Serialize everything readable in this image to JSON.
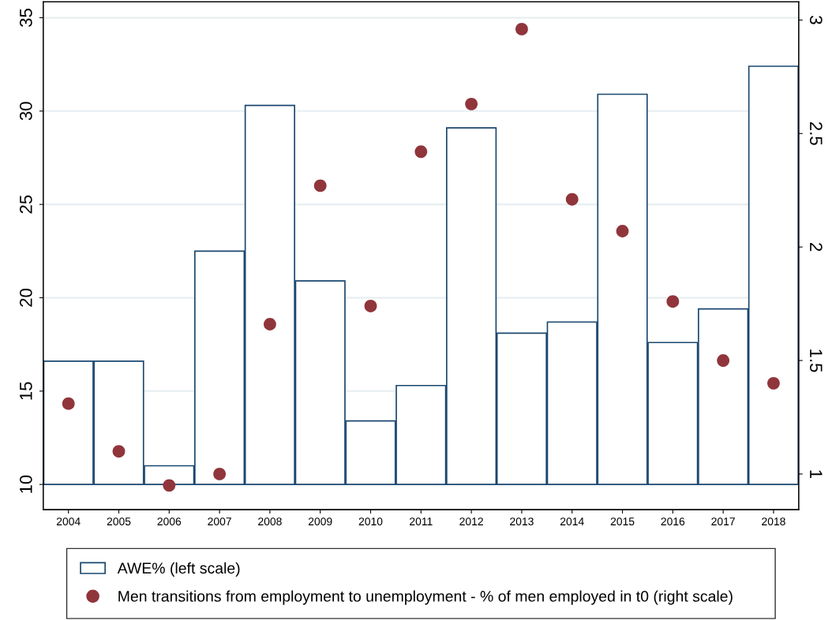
{
  "chart_data": {
    "type": "bar",
    "categories": [
      "2004",
      "2005",
      "2006",
      "2007",
      "2008",
      "2009",
      "2010",
      "2011",
      "2012",
      "2013",
      "2014",
      "2015",
      "2016",
      "2017",
      "2018"
    ],
    "series": [
      {
        "name": "AWE% (left scale)",
        "color": "#1a476f",
        "base": [
          10,
          10,
          10,
          10,
          10,
          10,
          10,
          10,
          10,
          10,
          10,
          10,
          10,
          10,
          10
        ],
        "values": [
          6.6,
          6.6,
          1.0,
          12.5,
          20.3,
          10.9,
          3.4,
          5.3,
          19.1,
          8.1,
          8.7,
          20.9,
          7.6,
          9.4,
          22.4
        ]
      },
      {
        "name": "Men transitions from employment to unemployment - % of men employed in t0 (right scale)",
        "type": "scatter",
        "axis": "y2",
        "color": "#90353b",
        "values": [
          1.31,
          1.1,
          0.95,
          1.0,
          1.66,
          2.27,
          1.74,
          2.42,
          2.63,
          2.96,
          2.21,
          2.07,
          1.76,
          1.5,
          1.4
        ]
      }
    ],
    "ylim": [
      8.65,
      35.85
    ],
    "yticks": [
      10,
      15,
      20,
      25,
      30,
      35
    ],
    "y2lim": [
      0.843,
      3.08
    ],
    "y2ticks": [
      1,
      1.5,
      2,
      2.5,
      3
    ],
    "grid": "y",
    "legend": "bottom",
    "marker": "circle"
  }
}
